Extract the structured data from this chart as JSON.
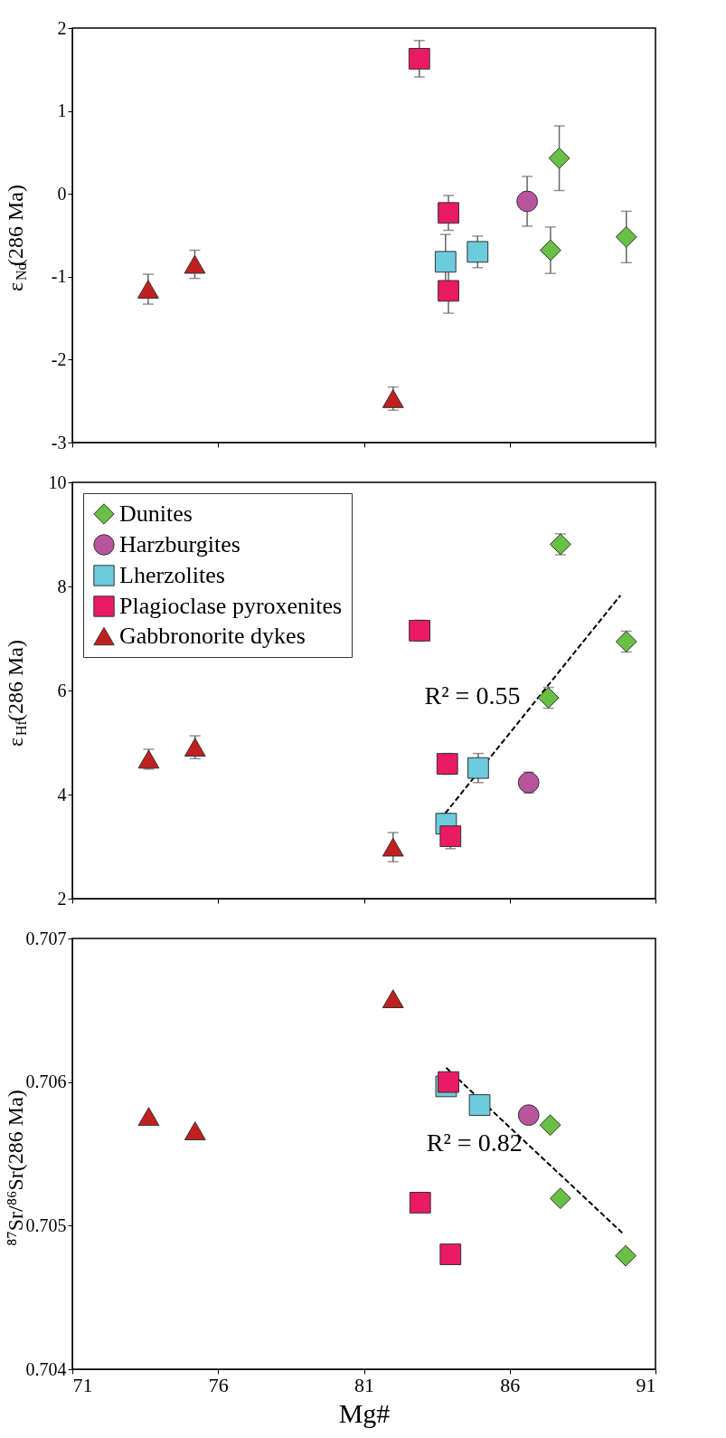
{
  "chart_data": [
    {
      "type": "scatter",
      "ylabel": "ε$_{Nd}$(286 Ma)",
      "xlim": [
        71,
        91
      ],
      "xticks": [
        71,
        76,
        81,
        86,
        91
      ],
      "ylim": [
        -3,
        2
      ],
      "yticks": [
        -3,
        -2,
        -1,
        0,
        1,
        2
      ],
      "tick_labels": "y",
      "grid": false,
      "legend": false,
      "series": [
        {
          "color": "#6abf45",
          "marker": "diamond",
          "x": [
            87.7,
            87.4,
            90.0
          ],
          "values": [
            0.43,
            -0.68,
            -0.52
          ],
          "errors": [
            0.39,
            0.28,
            0.31
          ]
        },
        {
          "color": "#b9559f",
          "marker": "circle",
          "x": [
            86.6
          ],
          "values": [
            -0.09
          ],
          "errors": [
            0.3
          ]
        },
        {
          "color": "#6ccbdc",
          "marker": "square",
          "x": [
            83.8,
            84.9
          ],
          "values": [
            -0.82,
            -0.7
          ],
          "errors": [
            0.33,
            0.19
          ]
        },
        {
          "color": "#ea1a63",
          "marker": "square",
          "x": [
            82.9,
            83.9,
            83.9
          ],
          "values": [
            1.63,
            -0.23,
            -1.17
          ],
          "errors": [
            0.22,
            0.21,
            0.27
          ]
        },
        {
          "color": "#c0201f",
          "marker": "triangle",
          "x": [
            73.6,
            75.2,
            82.0
          ],
          "values": [
            -1.15,
            -0.85,
            -2.47
          ],
          "errors": [
            0.18,
            0.17,
            0.14
          ]
        }
      ]
    },
    {
      "type": "scatter",
      "ylabel": "ε$_{Hf}$(286 Ma)",
      "xlim": [
        71,
        91
      ],
      "xticks": [
        71,
        76,
        81,
        86,
        91
      ],
      "ylim": [
        2,
        10
      ],
      "yticks": [
        2,
        4,
        6,
        8,
        10
      ],
      "tick_labels": "y",
      "grid": false,
      "legend": "top left",
      "annotations": [
        "R² = 0.55"
      ],
      "series": [
        {
          "name": "Dunites",
          "color": "#6abf45",
          "marker": "diamond",
          "x": [
            87.74,
            90.0,
            87.33
          ],
          "values": [
            8.81,
            6.94,
            5.86
          ],
          "errors": [
            0.2,
            0.2,
            0.2
          ]
        },
        {
          "name": "Harzburgites",
          "color": "#b9559f",
          "marker": "circle",
          "x": [
            86.65
          ],
          "values": [
            4.23
          ],
          "errors": [
            0.2
          ]
        },
        {
          "name": "Lherzolites",
          "color": "#6ccbdc",
          "marker": "square",
          "x": [
            84.92,
            83.82
          ],
          "values": [
            4.51,
            3.44
          ],
          "errors": [
            0.28,
            0.2
          ]
        },
        {
          "name": "Plagioclase pyroxenites",
          "color": "#ea1a63",
          "marker": "square",
          "x": [
            82.91,
            83.86,
            83.97
          ],
          "values": [
            7.15,
            4.59,
            3.2
          ],
          "errors": [
            0.2,
            0.2,
            0.24
          ]
        },
        {
          "name": "Gabbronorite dykes",
          "color": "#c0201f",
          "marker": "triangle",
          "x": [
            73.62,
            75.21,
            82.0
          ],
          "values": [
            4.68,
            4.91,
            2.99
          ],
          "errors": [
            0.19,
            0.22,
            0.28
          ]
        },
        {
          "type": "line",
          "color": "#000000",
          "line_style": "dashed",
          "marker": "none",
          "x": [
            83.79,
            89.8
          ],
          "values": [
            3.64,
            7.83
          ]
        }
      ]
    },
    {
      "type": "scatter",
      "xlabel": "Mg#",
      "ylabel": "⁸⁷Sr/⁸⁶Sr(286 Ma)",
      "xlim": [
        71,
        91
      ],
      "xticks": [
        71,
        76,
        81,
        86,
        91
      ],
      "ylim": [
        0.704,
        0.707
      ],
      "yticks": [
        0.704,
        0.705,
        0.706,
        0.707
      ],
      "grid": false,
      "legend": false,
      "annotations": [
        "R² = 0.82"
      ],
      "series": [
        {
          "color": "#6abf45",
          "marker": "diamond",
          "x": [
            87.39,
            87.74,
            89.98
          ],
          "values": [
            0.7057,
            0.70519,
            0.70479
          ]
        },
        {
          "color": "#b9559f",
          "marker": "circle",
          "x": [
            86.65
          ],
          "values": [
            0.70577
          ]
        },
        {
          "color": "#6ccbdc",
          "marker": "square",
          "x": [
            83.82,
            84.97
          ],
          "values": [
            0.70597,
            0.70584
          ]
        },
        {
          "color": "#ea1a63",
          "marker": "square",
          "x": [
            83.9,
            82.93,
            83.97
          ],
          "values": [
            0.706,
            0.70516,
            0.7048
          ]
        },
        {
          "color": "#c0201f",
          "marker": "triangle",
          "x": [
            82.0,
            73.62,
            75.21
          ],
          "values": [
            0.70658,
            0.70576,
            0.70566
          ]
        },
        {
          "type": "line",
          "color": "#000000",
          "line_style": "dashed",
          "marker": "none",
          "x": [
            83.82,
            89.91
          ],
          "values": [
            0.7061,
            0.70494
          ]
        }
      ]
    }
  ]
}
